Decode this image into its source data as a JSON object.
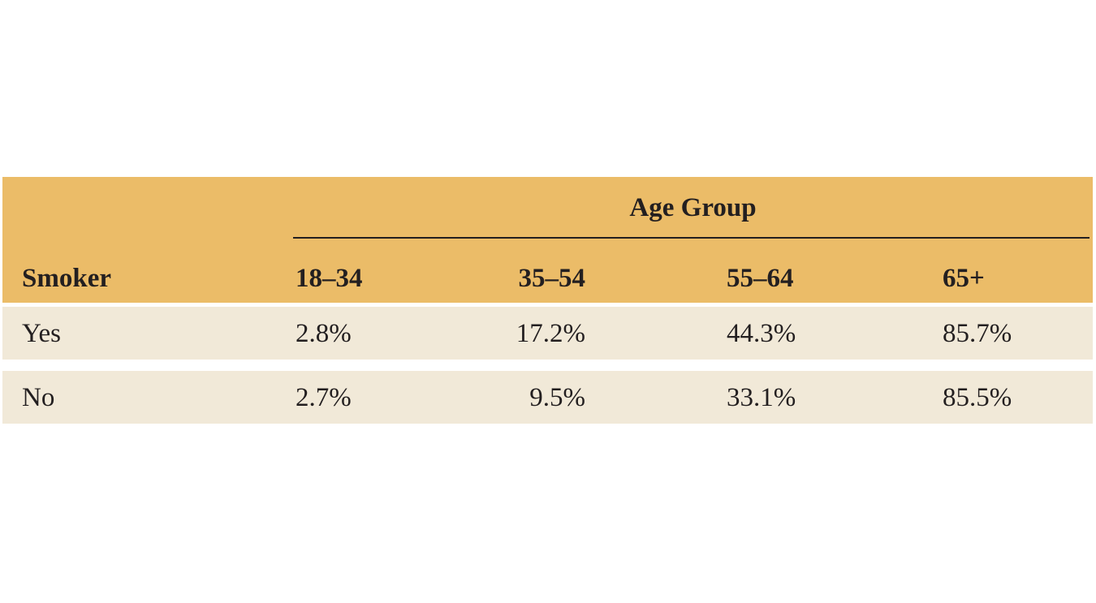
{
  "table": {
    "group_header": "Age Group",
    "row_header_label": "Smoker",
    "columns": [
      "18–34",
      "35–54",
      "55–64",
      "65+"
    ],
    "rows": [
      {
        "label": "Yes",
        "values": [
          "2.8%",
          "17.2%",
          "44.3%",
          "85.7%"
        ]
      },
      {
        "label": "No",
        "values": [
          "2.7%",
          "9.5%",
          "33.1%",
          "85.5%"
        ]
      }
    ]
  },
  "colors": {
    "header_background": "#ebbc68",
    "row_background": "#f1e9d8",
    "text": "#231f20",
    "page_background": "#ffffff"
  }
}
